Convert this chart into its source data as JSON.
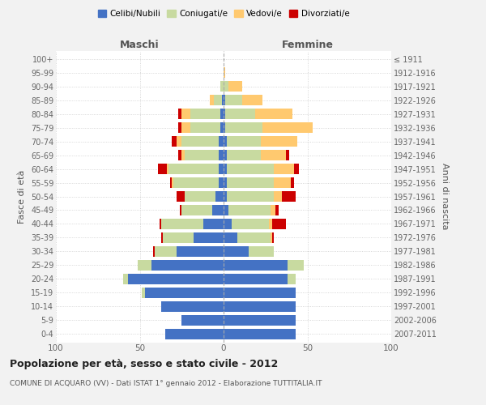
{
  "age_groups": [
    "0-4",
    "5-9",
    "10-14",
    "15-19",
    "20-24",
    "25-29",
    "30-34",
    "35-39",
    "40-44",
    "45-49",
    "50-54",
    "55-59",
    "60-64",
    "65-69",
    "70-74",
    "75-79",
    "80-84",
    "85-89",
    "90-94",
    "95-99",
    "100+"
  ],
  "birth_years": [
    "2007-2011",
    "2002-2006",
    "1997-2001",
    "1992-1996",
    "1987-1991",
    "1982-1986",
    "1977-1981",
    "1972-1976",
    "1967-1971",
    "1962-1966",
    "1957-1961",
    "1952-1956",
    "1947-1951",
    "1942-1946",
    "1937-1941",
    "1932-1936",
    "1927-1931",
    "1922-1926",
    "1917-1921",
    "1912-1916",
    "≤ 1911"
  ],
  "maschi": {
    "celibi": [
      35,
      25,
      37,
      47,
      57,
      43,
      28,
      18,
      12,
      7,
      5,
      3,
      3,
      3,
      3,
      2,
      2,
      1,
      0,
      0,
      0
    ],
    "coniugati": [
      0,
      0,
      0,
      2,
      3,
      8,
      13,
      18,
      25,
      18,
      18,
      27,
      30,
      20,
      22,
      18,
      18,
      5,
      2,
      0,
      0
    ],
    "vedovi": [
      0,
      0,
      0,
      0,
      0,
      0,
      0,
      0,
      0,
      0,
      0,
      1,
      1,
      2,
      3,
      5,
      5,
      2,
      0,
      0,
      0
    ],
    "divorziati": [
      0,
      0,
      0,
      0,
      0,
      0,
      1,
      1,
      1,
      1,
      5,
      1,
      5,
      2,
      3,
      2,
      2,
      0,
      0,
      0,
      0
    ]
  },
  "femmine": {
    "nubili": [
      43,
      43,
      43,
      43,
      38,
      38,
      15,
      8,
      5,
      3,
      2,
      2,
      2,
      2,
      2,
      1,
      1,
      1,
      0,
      0,
      0
    ],
    "coniugate": [
      0,
      0,
      0,
      0,
      5,
      10,
      15,
      20,
      22,
      25,
      28,
      28,
      28,
      20,
      20,
      22,
      18,
      10,
      3,
      0,
      0
    ],
    "vedove": [
      0,
      0,
      0,
      0,
      0,
      0,
      0,
      1,
      2,
      3,
      5,
      10,
      12,
      15,
      22,
      30,
      22,
      12,
      8,
      1,
      0
    ],
    "divorziate": [
      0,
      0,
      0,
      0,
      0,
      0,
      0,
      1,
      8,
      2,
      8,
      2,
      3,
      2,
      0,
      0,
      0,
      0,
      0,
      0,
      0
    ]
  },
  "colors": {
    "celibe_nubile": "#4472c4",
    "coniugato": "#c8daa0",
    "vedovo": "#ffc96f",
    "divorziato": "#cc0000"
  },
  "xlim": 100,
  "title": "Popolazione per età, sesso e stato civile - 2012",
  "subtitle": "COMUNE DI ACQUARO (VV) - Dati ISTAT 1° gennaio 2012 - Elaborazione TUTTITALIA.IT",
  "ylabel_left": "Fasce di età",
  "ylabel_right": "Anni di nascita",
  "xlabel_left": "Maschi",
  "xlabel_right": "Femmine",
  "bg_color": "#f2f2f2",
  "plot_bg": "#ffffff"
}
